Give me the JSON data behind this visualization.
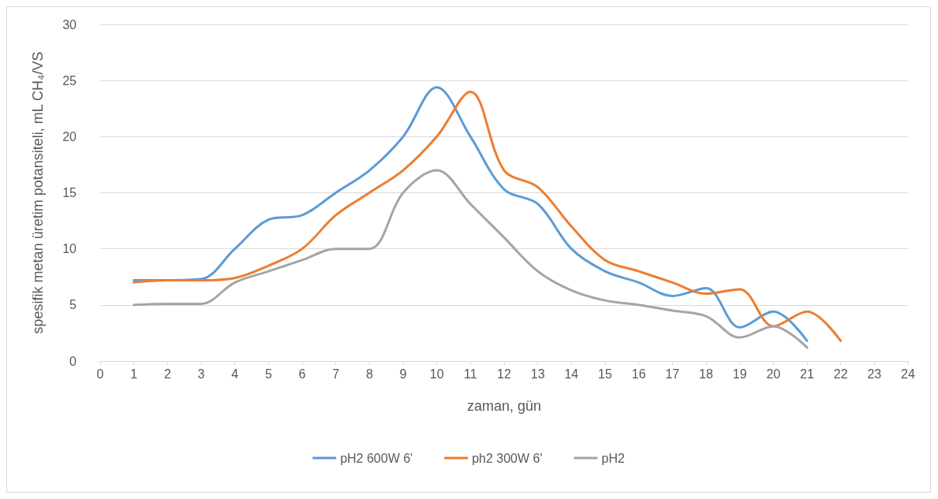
{
  "chart_data": {
    "type": "line",
    "xlabel": "zaman, gün",
    "ylabel": "spesifik metan üretim potansiteli, mL CH₄/VS",
    "xlim": [
      0,
      24
    ],
    "xticks": [
      0,
      1,
      2,
      3,
      4,
      5,
      6,
      7,
      8,
      9,
      10,
      11,
      12,
      13,
      14,
      15,
      16,
      17,
      18,
      19,
      20,
      21,
      22,
      23,
      24
    ],
    "ylim": [
      0,
      30
    ],
    "yticks": [
      0,
      5,
      10,
      15,
      20,
      25,
      30
    ],
    "grid": "y",
    "legend": "bottom",
    "marker": "none",
    "line_style": "solid",
    "series": [
      {
        "name": "pH2 600W 6'",
        "color": "#5b9bd5",
        "x": [
          1,
          2,
          3,
          4,
          5,
          6,
          7,
          8,
          9,
          10,
          11,
          12,
          13,
          14,
          15,
          16,
          17,
          18,
          19,
          20,
          21
        ],
        "values": [
          7.2,
          7.2,
          7.3,
          10,
          12.6,
          13,
          15,
          17,
          20,
          24.4,
          20,
          15.3,
          14,
          10,
          8,
          7,
          5.8,
          6.5,
          3,
          4.4,
          1.8
        ]
      },
      {
        "name": "ph2 300W 6'",
        "color": "#ed7d31",
        "x": [
          1,
          2,
          3,
          4,
          5,
          6,
          7,
          8,
          9,
          10,
          11,
          12,
          13,
          14,
          15,
          16,
          17,
          18,
          19,
          20,
          21,
          22
        ],
        "values": [
          7,
          7.2,
          7.2,
          7.4,
          8.5,
          10,
          13,
          15,
          17,
          20,
          24,
          17,
          15.5,
          12,
          9,
          8,
          7,
          6,
          6.4,
          3.1,
          4.4,
          1.8
        ]
      },
      {
        "name": "pH2",
        "color": "#a5a5a5",
        "x": [
          1,
          2,
          3,
          4,
          5,
          6,
          7,
          8,
          9,
          10,
          11,
          12,
          13,
          14,
          15,
          16,
          17,
          18,
          19,
          20,
          21
        ],
        "values": [
          5,
          5.1,
          5.1,
          7,
          8,
          9,
          10,
          10,
          15,
          17,
          14,
          11,
          8,
          6.3,
          5.4,
          5,
          4.5,
          4,
          2.1,
          3.1,
          1.2
        ]
      }
    ]
  }
}
